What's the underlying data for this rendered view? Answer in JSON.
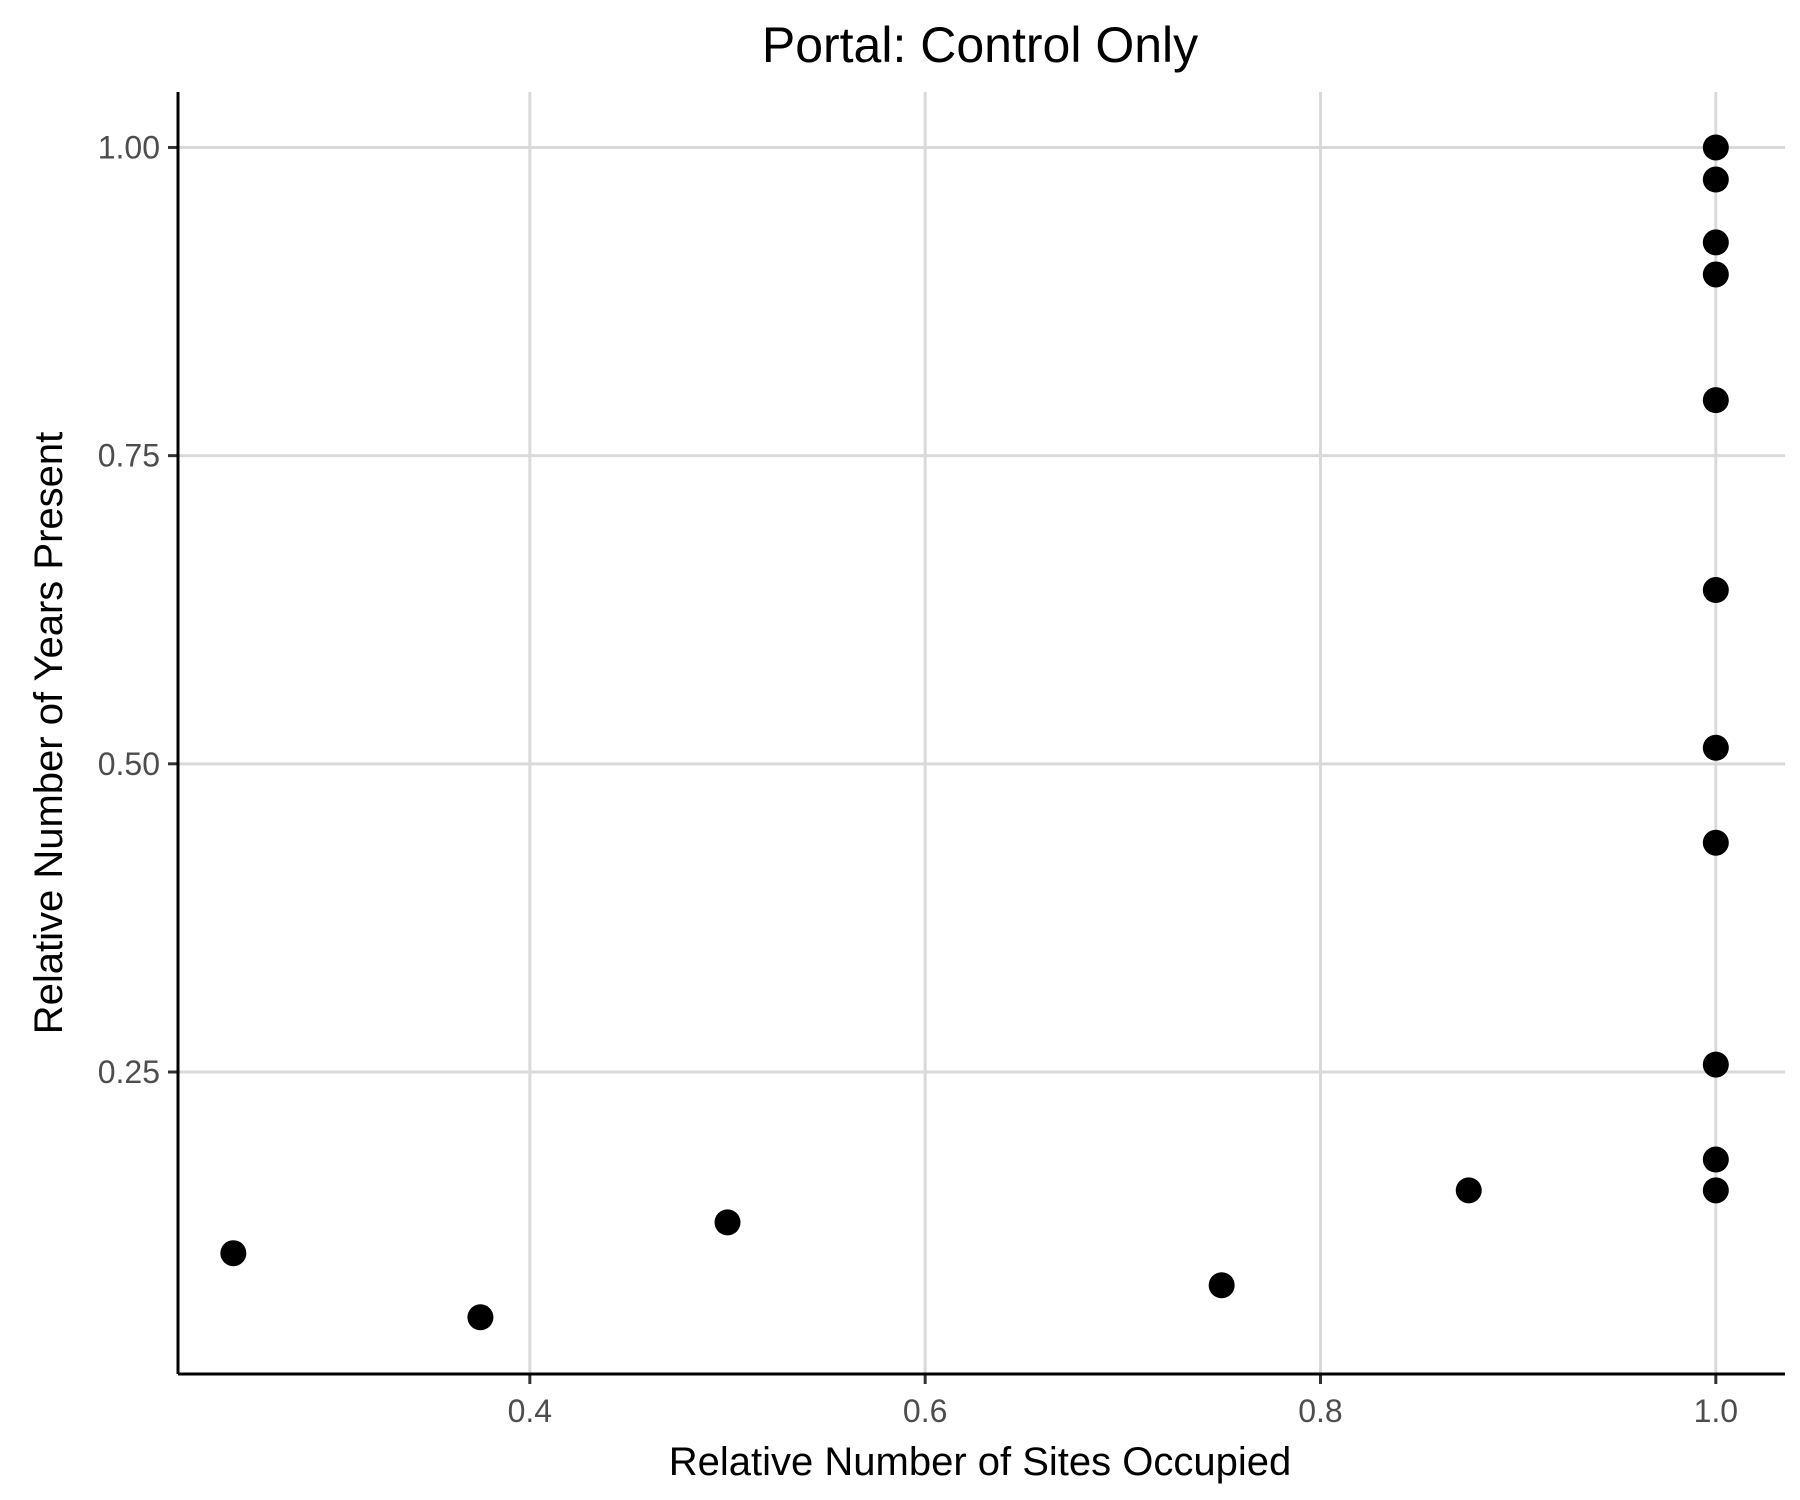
{
  "chart_data": {
    "type": "scatter",
    "title": "Portal: Control Only",
    "xlabel": "Relative Number of Sites Occupied",
    "ylabel": "Relative Number of Years Present",
    "xlim": [
      0.222,
      1.035
    ],
    "ylim": [
      0.005,
      1.045
    ],
    "x_ticks": [
      0.4,
      0.6,
      0.8,
      1.0
    ],
    "x_tick_labels": [
      "0.4",
      "0.6",
      "0.8",
      "1.0"
    ],
    "y_ticks": [
      0.25,
      0.5,
      0.75,
      1.0
    ],
    "y_tick_labels": [
      "0.25",
      "0.50",
      "0.75",
      "1.00"
    ],
    "grid": true,
    "legend": "none",
    "point_color": "#000000",
    "points": [
      {
        "x": 0.25,
        "y": 0.103
      },
      {
        "x": 0.375,
        "y": 0.051
      },
      {
        "x": 0.5,
        "y": 0.128
      },
      {
        "x": 0.75,
        "y": 0.077
      },
      {
        "x": 0.875,
        "y": 0.154
      },
      {
        "x": 1.0,
        "y": 1.0
      },
      {
        "x": 1.0,
        "y": 0.974
      },
      {
        "x": 1.0,
        "y": 0.923
      },
      {
        "x": 1.0,
        "y": 0.897
      },
      {
        "x": 1.0,
        "y": 0.795
      },
      {
        "x": 1.0,
        "y": 0.641
      },
      {
        "x": 1.0,
        "y": 0.513
      },
      {
        "x": 1.0,
        "y": 0.436
      },
      {
        "x": 1.0,
        "y": 0.256
      },
      {
        "x": 1.0,
        "y": 0.179
      },
      {
        "x": 1.0,
        "y": 0.154
      }
    ]
  }
}
